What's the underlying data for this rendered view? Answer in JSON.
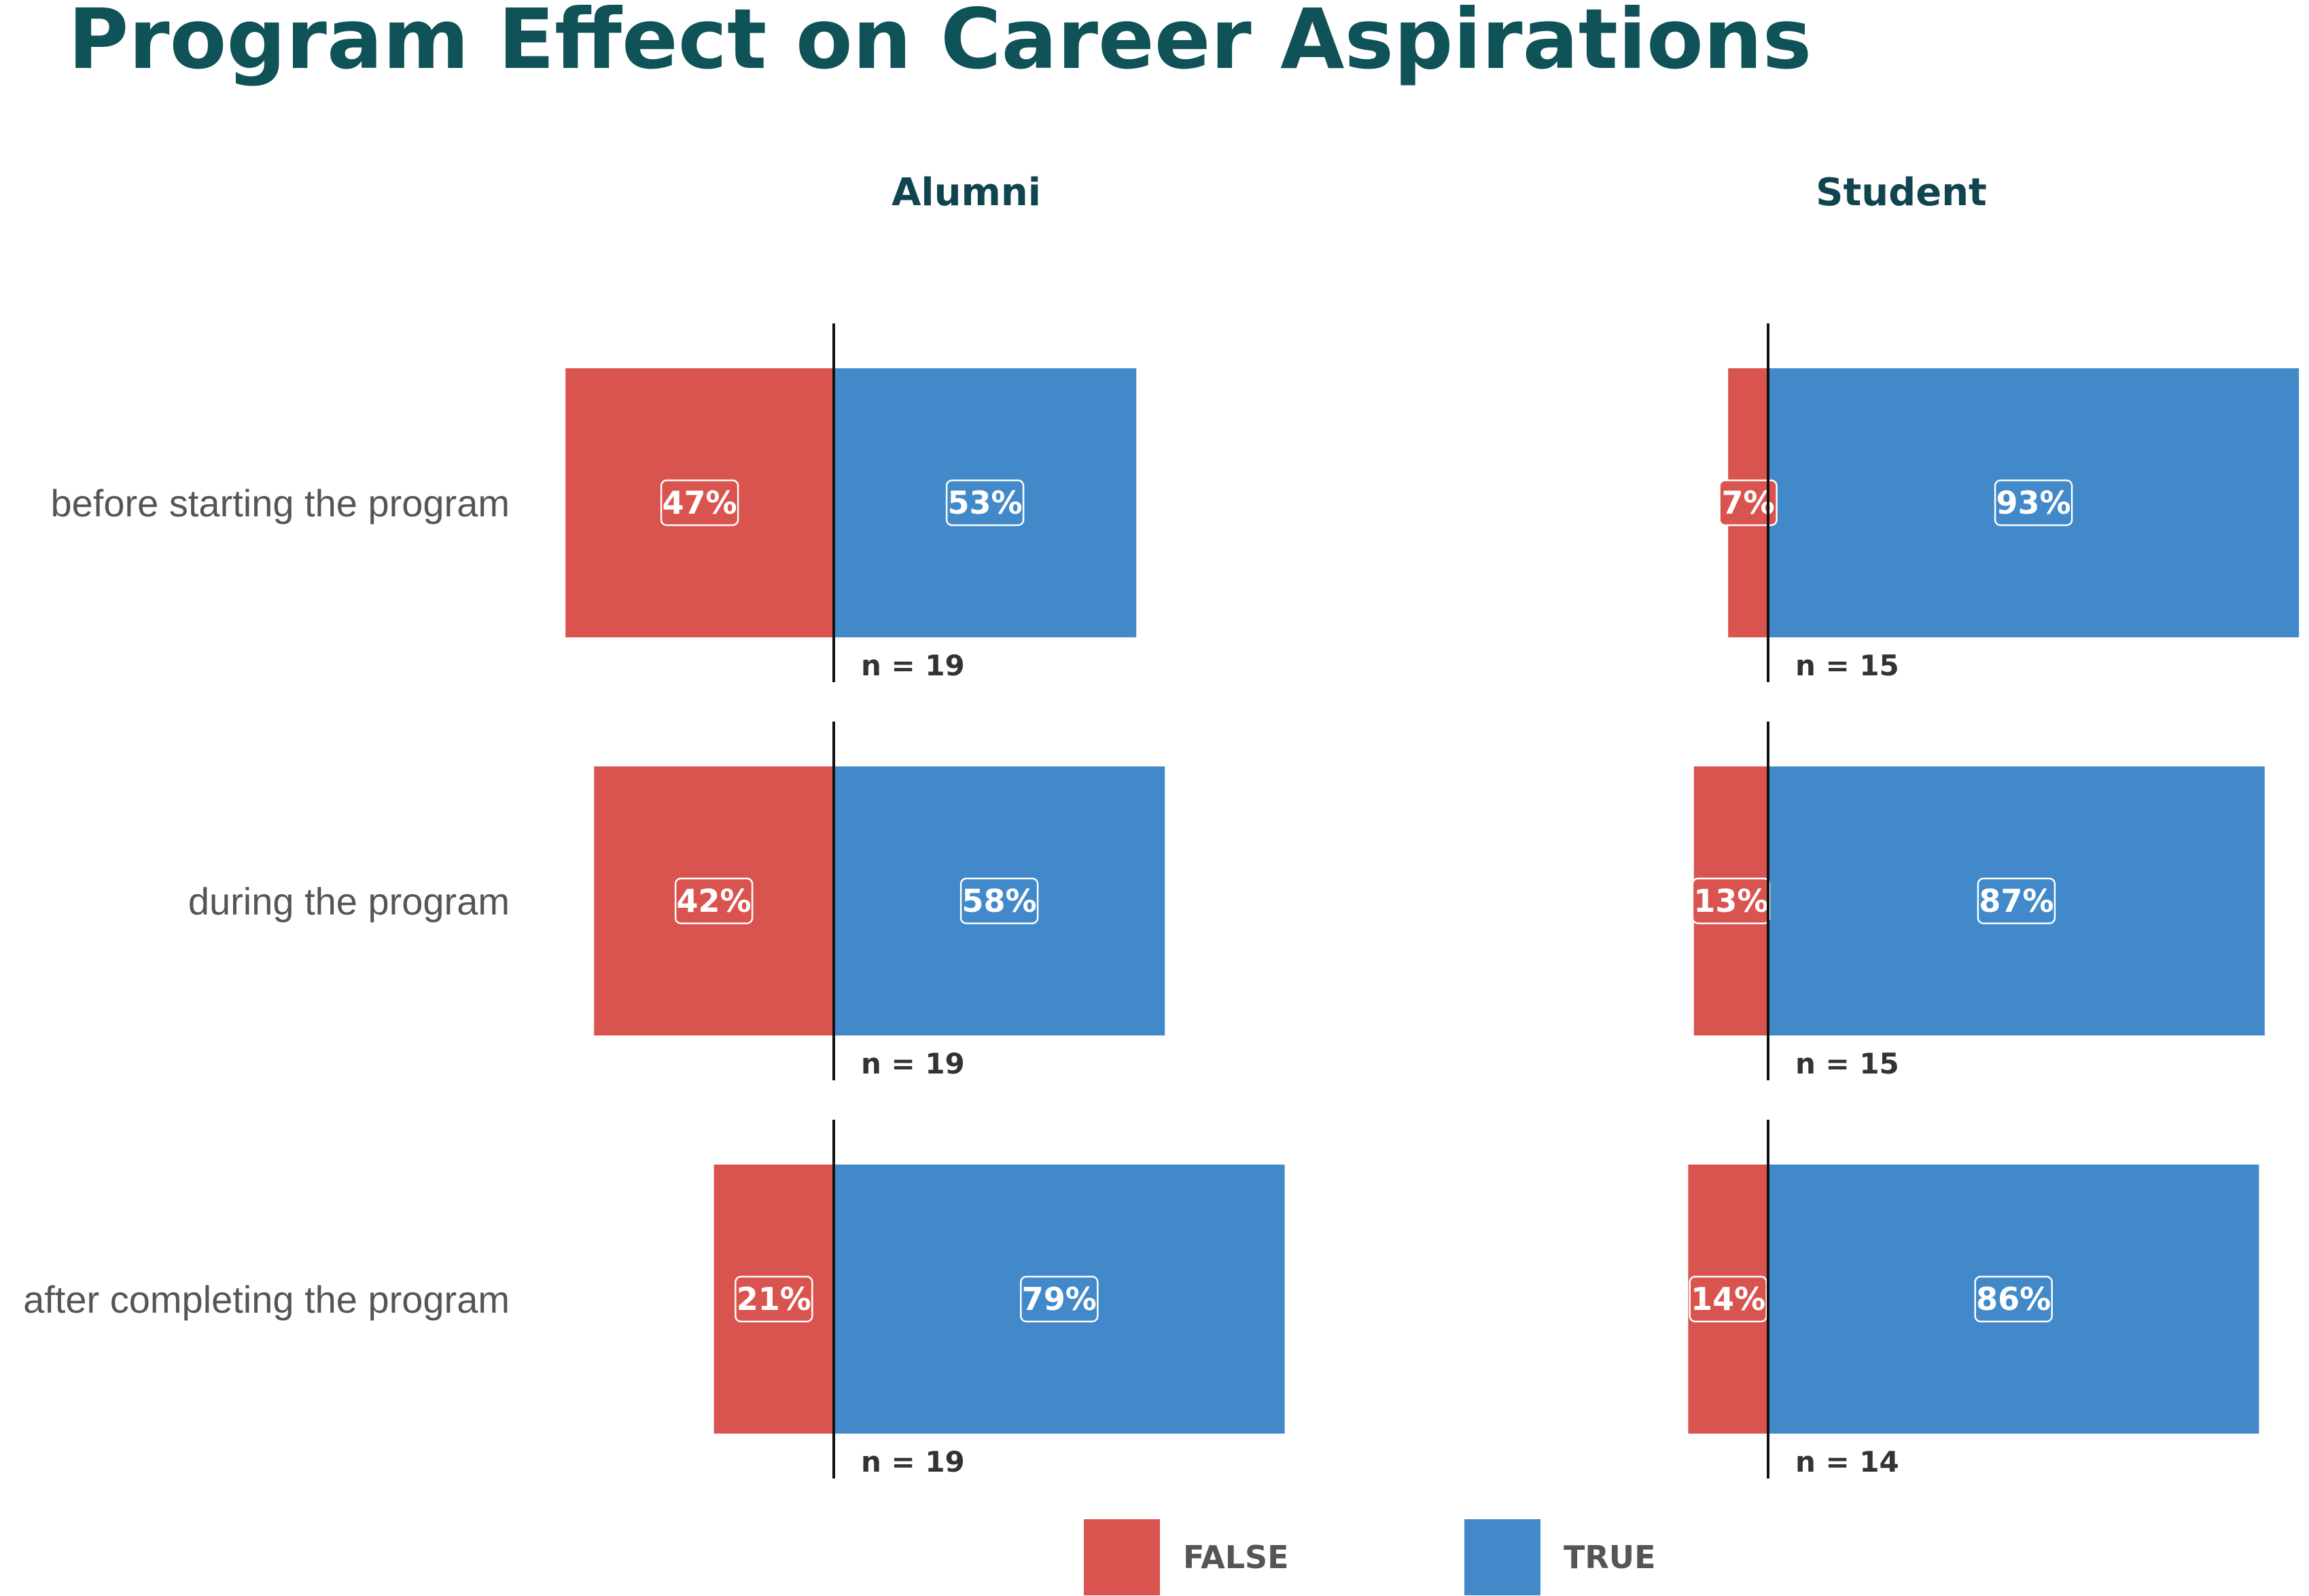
{
  "chart_data": {
    "type": "bar",
    "title": "Program Effect on Career Aspirations",
    "categories": [
      "before starting the program",
      "during the program",
      "after completing the program"
    ],
    "panels": [
      {
        "name": "Alumni",
        "series": [
          {
            "name": "FALSE",
            "values": [
              47,
              42,
              21
            ]
          },
          {
            "name": "TRUE",
            "values": [
              53,
              58,
              79
            ]
          }
        ],
        "n": [
          19,
          19,
          19
        ]
      },
      {
        "name": "Student",
        "series": [
          {
            "name": "FALSE",
            "values": [
              7,
              13,
              14
            ]
          },
          {
            "name": "TRUE",
            "values": [
              93,
              87,
              86
            ]
          }
        ],
        "n": [
          15,
          15,
          14
        ]
      }
    ],
    "value_suffix": "%",
    "n_prefix": "n =",
    "legend": [
      {
        "label": "FALSE",
        "color": "#d9534f"
      },
      {
        "label": "TRUE",
        "color": "#4189c9"
      }
    ],
    "legend_position": "bottom",
    "colors": {
      "false": "#d9534f",
      "true": "#4189c9",
      "title": "#0f5257",
      "panel_title": "#10454f"
    }
  }
}
